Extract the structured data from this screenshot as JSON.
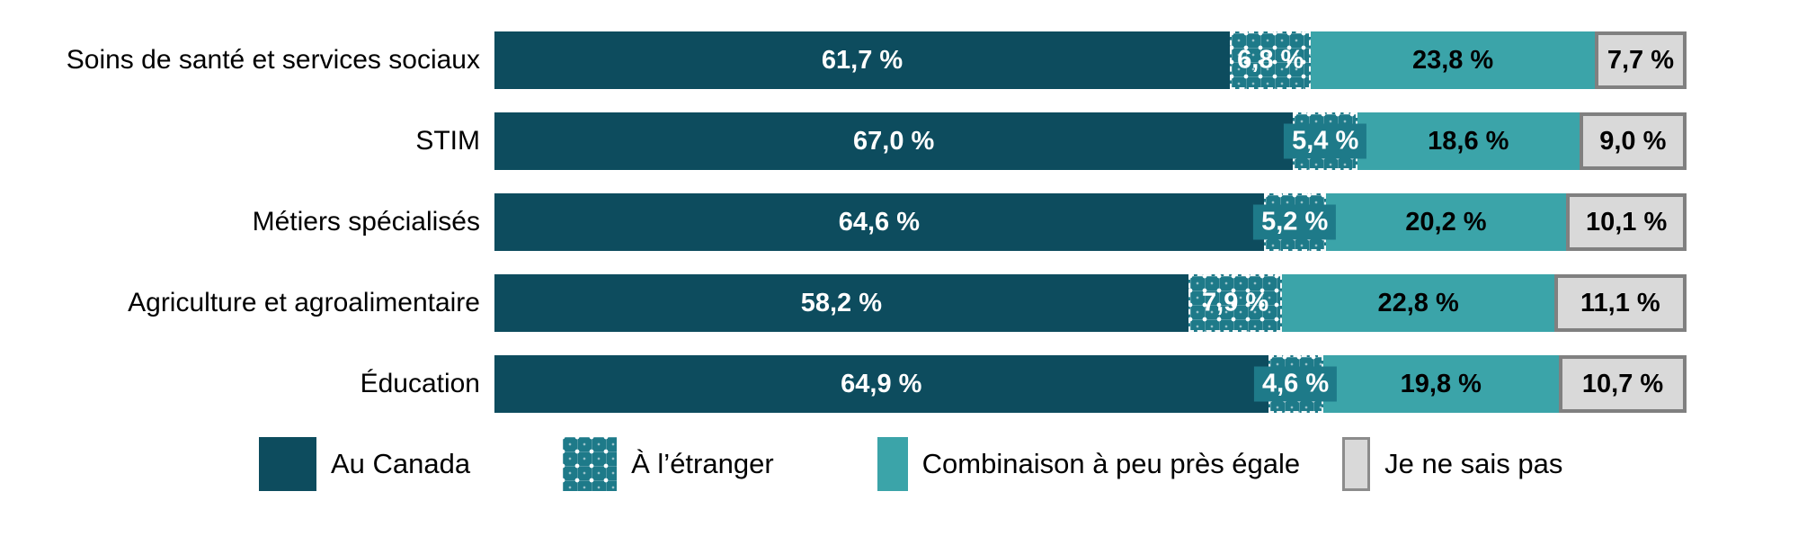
{
  "chart_data": {
    "type": "bar",
    "orientation": "horizontal",
    "stacked": true,
    "unit": "%",
    "xlim": [
      0,
      100
    ],
    "axis": "none",
    "grid": false,
    "legend_position": "bottom",
    "categories": [
      "Soins de santé et services sociaux",
      "STIM",
      "Métiers spécialisés",
      "Agriculture et agroalimentaire",
      "Éducation"
    ],
    "series": [
      {
        "name": "Au Canada",
        "color": "#0d4c5e",
        "pattern": "solid",
        "text_color": "#ffffff",
        "values": [
          61.7,
          67.0,
          64.6,
          58.2,
          64.9
        ],
        "labels": [
          "61,7 %",
          "67,0 %",
          "64,6 %",
          "58,2 %",
          "64,9 %"
        ]
      },
      {
        "name": "À l’étranger",
        "color": "#1e7a89",
        "pattern": "white-dots",
        "text_color": "#ffffff",
        "values": [
          6.8,
          5.4,
          5.2,
          7.9,
          4.6
        ],
        "labels": [
          "6,8 %",
          "5,4 %",
          "5,2 %",
          "7,9 %",
          "4,6 %"
        ]
      },
      {
        "name": "Combinaison à peu près égale",
        "color": "#3ba4a9",
        "pattern": "solid",
        "text_color": "#000000",
        "values": [
          23.8,
          18.6,
          20.2,
          22.8,
          19.8
        ],
        "labels": [
          "23,8 %",
          "18,6 %",
          "20,2 %",
          "22,8 %",
          "19,8 %"
        ]
      },
      {
        "name": "Je ne sais pas",
        "color": "#d9d9d9",
        "pattern": "solid",
        "border_color": "#808080",
        "text_color": "#000000",
        "values": [
          7.7,
          9.0,
          10.1,
          11.1,
          10.7
        ],
        "labels": [
          "7,7 %",
          "9,0 %",
          "10,1 %",
          "11,1 %",
          "10,7 %"
        ]
      }
    ]
  }
}
